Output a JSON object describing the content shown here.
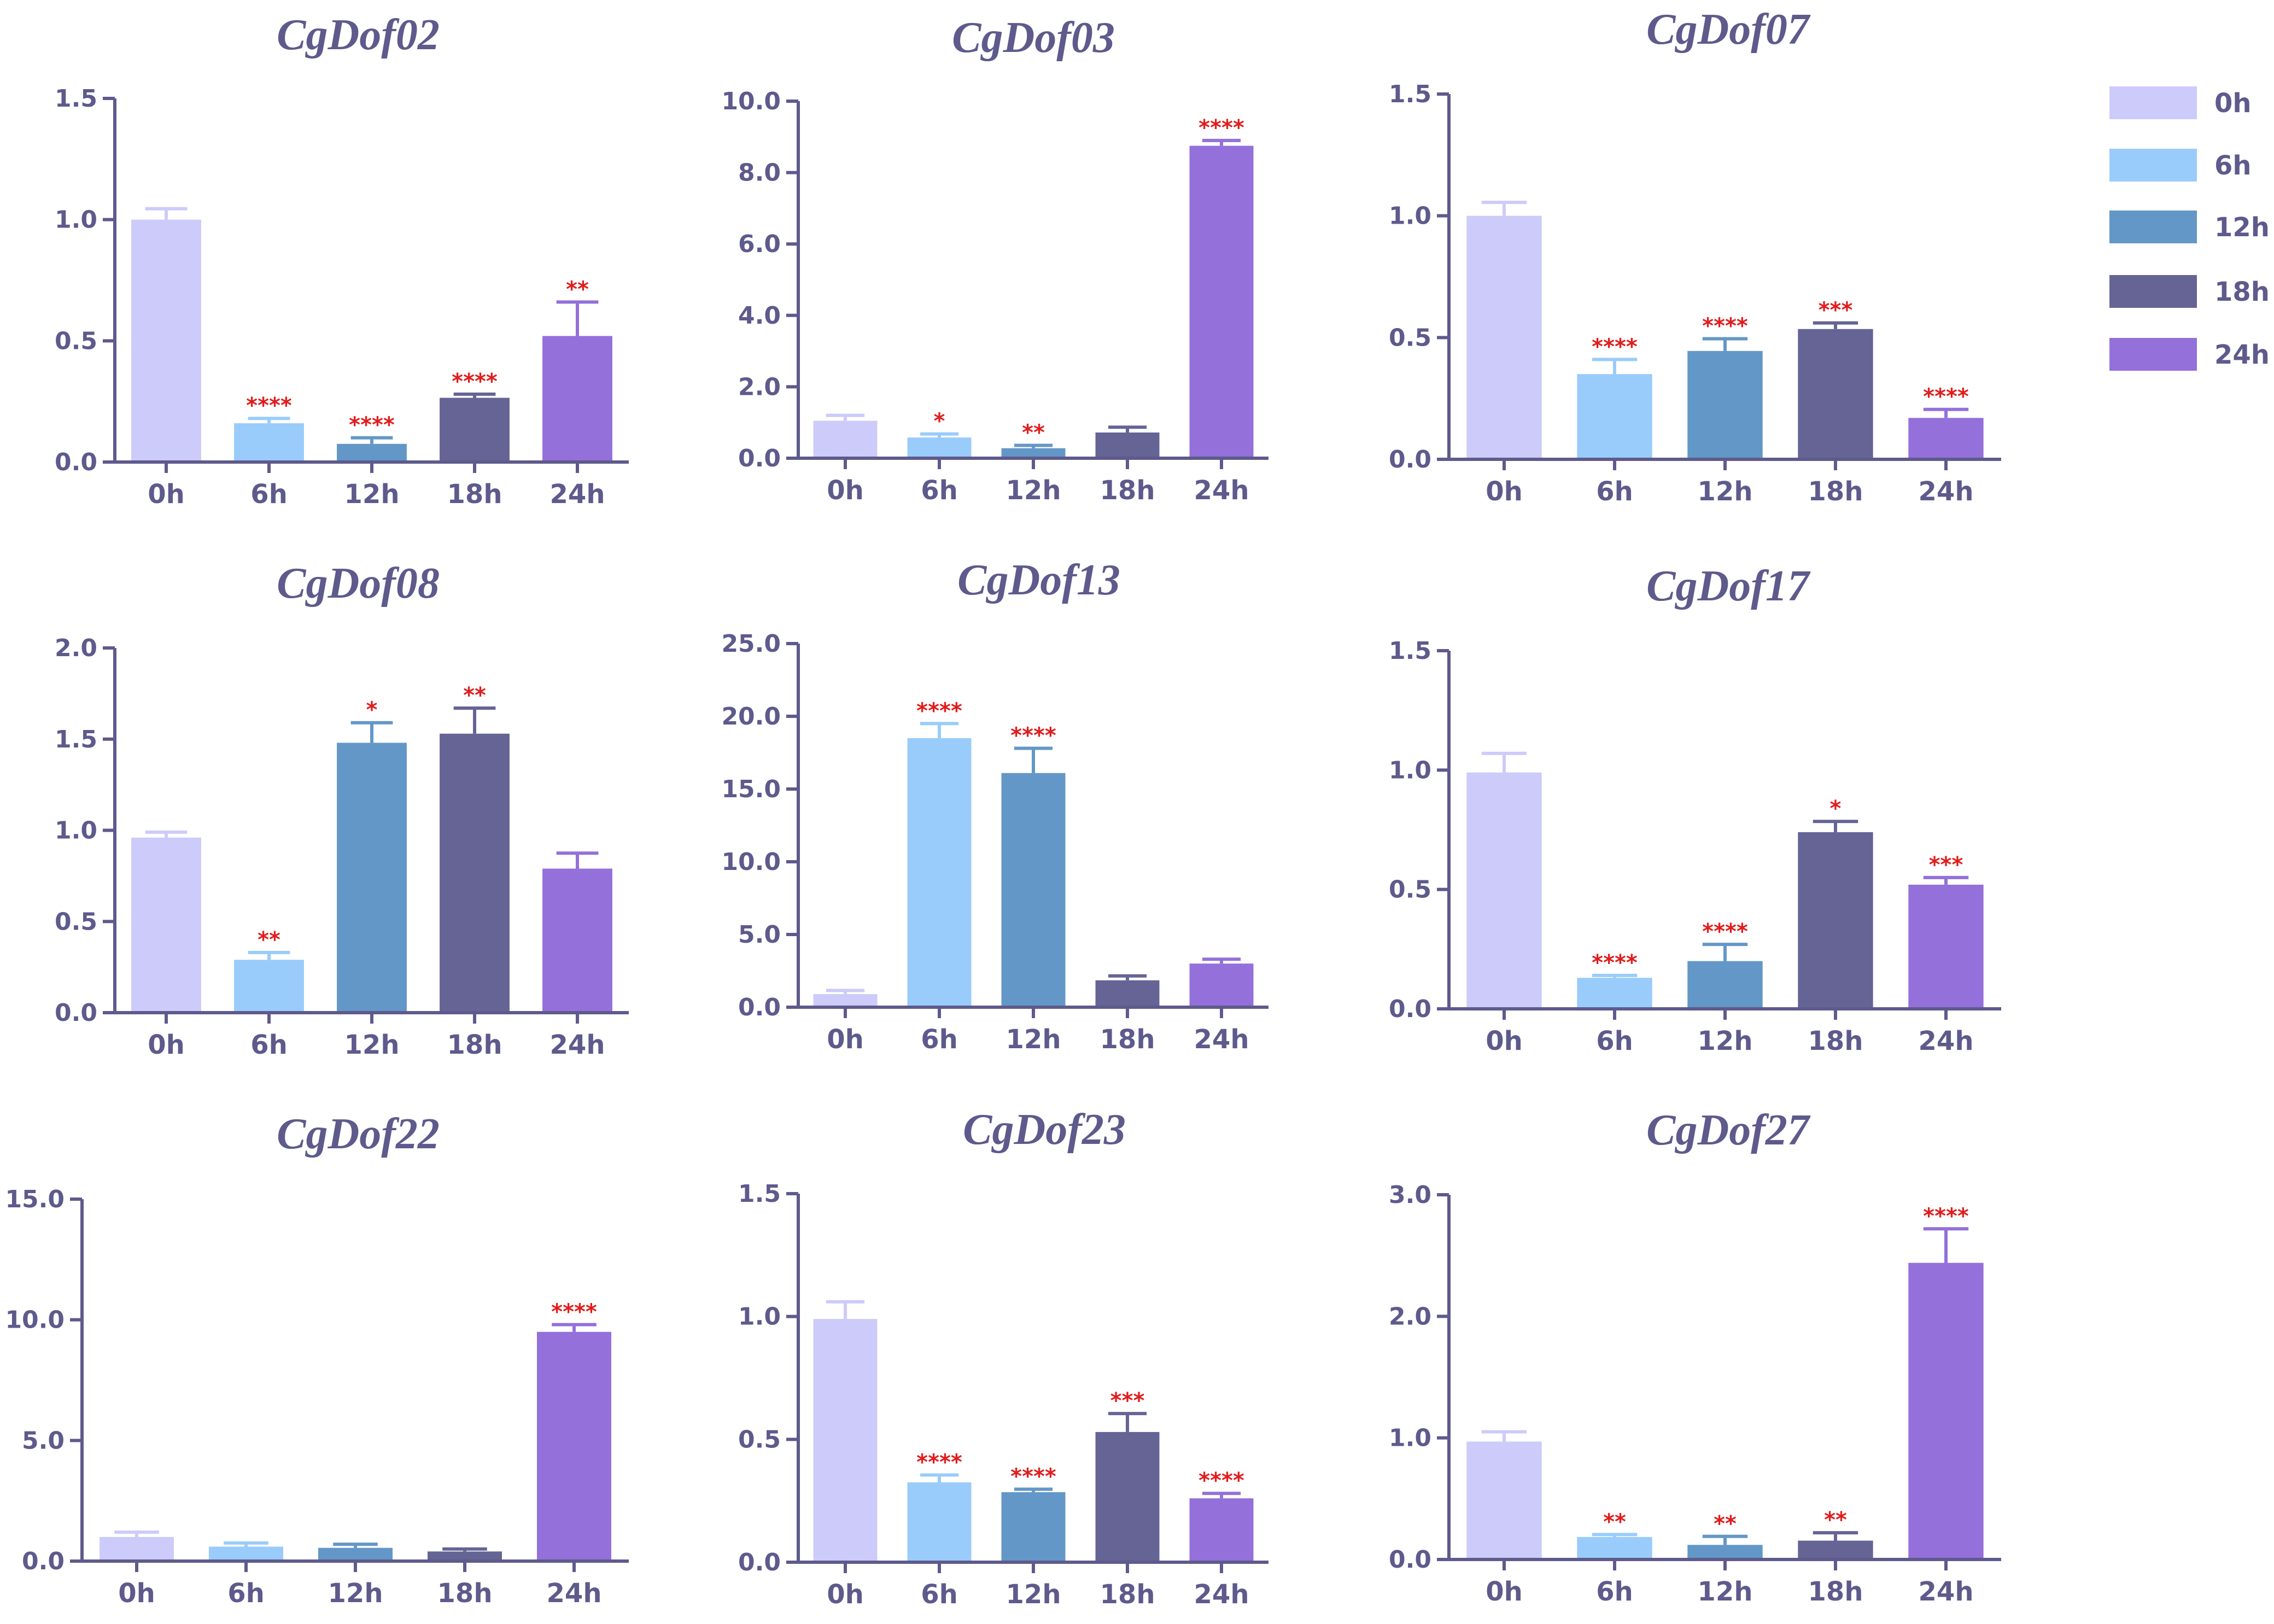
{
  "legend": [
    {
      "label": "0h",
      "color": "#cccbfa"
    },
    {
      "label": "6h",
      "color": "#99ccfb"
    },
    {
      "label": "12h",
      "color": "#6397c7"
    },
    {
      "label": "18h",
      "color": "#656495"
    },
    {
      "label": "24h",
      "color": "#9370da"
    }
  ],
  "chart_data": [
    {
      "type": "bar",
      "title": "CgDof02",
      "categories": [
        "0h",
        "6h",
        "12h",
        "18h",
        "24h"
      ],
      "values": [
        1.0,
        0.16,
        0.075,
        0.265,
        0.52
      ],
      "errors": [
        0.045,
        0.02,
        0.025,
        0.015,
        0.14
      ],
      "significance": [
        "",
        "****",
        "****",
        "****",
        "**"
      ],
      "ylim": [
        0,
        1.5
      ],
      "yticks": [
        0,
        0.5,
        1.0,
        1.5
      ],
      "ytick_labels": [
        "0.0",
        "0.5",
        "1.0",
        "1.5"
      ]
    },
    {
      "type": "bar",
      "title": "CgDof03",
      "categories": [
        "0h",
        "6h",
        "12h",
        "18h",
        "24h"
      ],
      "values": [
        1.05,
        0.58,
        0.28,
        0.72,
        8.75
      ],
      "errors": [
        0.15,
        0.1,
        0.08,
        0.15,
        0.15
      ],
      "significance": [
        "",
        "*",
        "**",
        "",
        "****"
      ],
      "ylim": [
        0,
        10
      ],
      "yticks": [
        0,
        2,
        4,
        6,
        8,
        10
      ],
      "ytick_labels": [
        "0.0",
        "2.0",
        "4.0",
        "6.0",
        "8.0",
        "10.0"
      ]
    },
    {
      "type": "bar",
      "title": "CgDof07",
      "categories": [
        "0h",
        "6h",
        "12h",
        "18h",
        "24h"
      ],
      "values": [
        1.0,
        0.35,
        0.445,
        0.535,
        0.17
      ],
      "errors": [
        0.055,
        0.06,
        0.05,
        0.025,
        0.035
      ],
      "significance": [
        "",
        "****",
        "****",
        "***",
        "****"
      ],
      "ylim": [
        0,
        1.5
      ],
      "yticks": [
        0,
        0.5,
        1.0,
        1.5
      ],
      "ytick_labels": [
        "0.0",
        "0.5",
        "1.0",
        "1.5"
      ]
    },
    {
      "type": "bar",
      "title": "CgDof08",
      "categories": [
        "0h",
        "6h",
        "12h",
        "18h",
        "24h"
      ],
      "values": [
        0.96,
        0.29,
        1.48,
        1.53,
        0.79
      ],
      "errors": [
        0.03,
        0.04,
        0.11,
        0.14,
        0.085
      ],
      "significance": [
        "",
        "**",
        "*",
        "**",
        ""
      ],
      "ylim": [
        0,
        2.0
      ],
      "yticks": [
        0,
        0.5,
        1.0,
        1.5,
        2.0
      ],
      "ytick_labels": [
        "0.0",
        "0.5",
        "1.0",
        "1.5",
        "2.0"
      ]
    },
    {
      "type": "bar",
      "title": "CgDof13",
      "categories": [
        "0h",
        "6h",
        "12h",
        "18h",
        "24h"
      ],
      "values": [
        0.9,
        18.5,
        16.1,
        1.85,
        3.0
      ],
      "errors": [
        0.25,
        1.0,
        1.7,
        0.3,
        0.3
      ],
      "significance": [
        "",
        "****",
        "****",
        "",
        ""
      ],
      "ylim": [
        0,
        25
      ],
      "yticks": [
        0,
        5,
        10,
        15,
        20,
        25
      ],
      "ytick_labels": [
        "0.0",
        "5.0",
        "10.0",
        "15.0",
        "20.0",
        "25.0"
      ]
    },
    {
      "type": "bar",
      "title": "CgDof17",
      "categories": [
        "0h",
        "6h",
        "12h",
        "18h",
        "24h"
      ],
      "values": [
        0.99,
        0.13,
        0.2,
        0.74,
        0.52
      ],
      "errors": [
        0.08,
        0.01,
        0.07,
        0.045,
        0.03
      ],
      "significance": [
        "",
        "****",
        "****",
        "*",
        "***"
      ],
      "ylim": [
        0,
        1.5
      ],
      "yticks": [
        0,
        0.5,
        1.0,
        1.5
      ],
      "ytick_labels": [
        "0.0",
        "0.5",
        "1.0",
        "1.5"
      ]
    },
    {
      "type": "bar",
      "title": "CgDof22",
      "categories": [
        "0h",
        "6h",
        "12h",
        "18h",
        "24h"
      ],
      "values": [
        1.0,
        0.6,
        0.55,
        0.4,
        9.5
      ],
      "errors": [
        0.2,
        0.15,
        0.15,
        0.1,
        0.3
      ],
      "significance": [
        "",
        "",
        "",
        "",
        "****"
      ],
      "ylim": [
        0,
        15
      ],
      "yticks": [
        0,
        5,
        10,
        15
      ],
      "ytick_labels": [
        "0.0",
        "5.0",
        "10.0",
        "15.0"
      ]
    },
    {
      "type": "bar",
      "title": "CgDof23",
      "categories": [
        "0h",
        "6h",
        "12h",
        "18h",
        "24h"
      ],
      "values": [
        0.99,
        0.325,
        0.285,
        0.53,
        0.26
      ],
      "errors": [
        0.07,
        0.03,
        0.012,
        0.075,
        0.02
      ],
      "significance": [
        "",
        "****",
        "****",
        "***",
        "****"
      ],
      "ylim": [
        0,
        1.5
      ],
      "yticks": [
        0,
        0.5,
        1.0,
        1.5
      ],
      "ytick_labels": [
        "0.0",
        "0.5",
        "1.0",
        "1.5"
      ]
    },
    {
      "type": "bar",
      "title": "CgDof27",
      "categories": [
        "0h",
        "6h",
        "12h",
        "18h",
        "24h"
      ],
      "values": [
        0.97,
        0.185,
        0.12,
        0.155,
        2.44
      ],
      "errors": [
        0.08,
        0.02,
        0.07,
        0.065,
        0.28
      ],
      "significance": [
        "",
        "**",
        "**",
        "**",
        "****"
      ],
      "ylim": [
        0,
        3.0
      ],
      "yticks": [
        0,
        1,
        2,
        3
      ],
      "ytick_labels": [
        "0.0",
        "1.0",
        "2.0",
        "3.0"
      ]
    }
  ]
}
